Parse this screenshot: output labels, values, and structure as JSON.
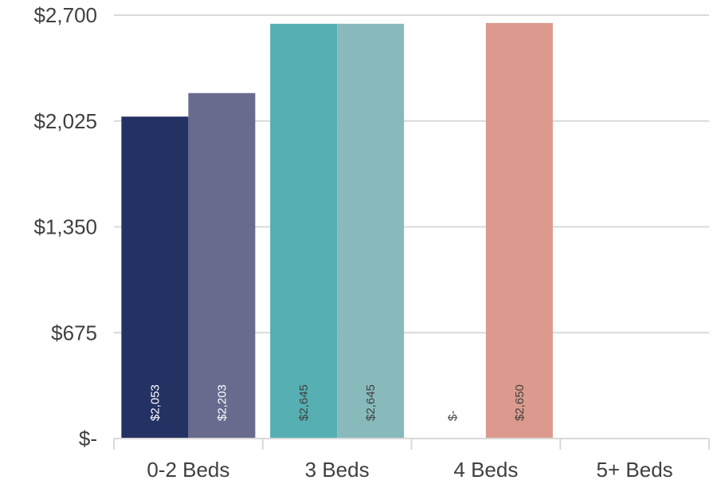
{
  "chart_data": {
    "type": "bar",
    "categories": [
      "0-2 Beds",
      "3 Beds",
      "4 Beds",
      "5+ Beds"
    ],
    "y_ticks": [
      "$-",
      "$675",
      "$1,350",
      "$2,025",
      "$2,700"
    ],
    "ylim": [
      0,
      2700
    ],
    "grid": true,
    "legend": "none",
    "series": [
      {
        "color": "#243163",
        "values": [
          2053,
          2645,
          0,
          null
        ],
        "labels": [
          "$2,053",
          "$2,645",
          "$-",
          ""
        ]
      },
      {
        "color": "#686b8e",
        "values": [
          2203,
          2645,
          2650,
          null
        ],
        "labels": [
          "$2,203",
          "$2,645",
          "$2,650",
          ""
        ]
      }
    ],
    "category_colors": [
      [
        "#243163",
        "#686b8e"
      ],
      [
        "#56afb2",
        "#88babc"
      ],
      [
        "#ffffff",
        "#db9a8d"
      ],
      [
        "#ffffff",
        "#ffffff"
      ]
    ],
    "label_colors": [
      [
        "#ffffff",
        "#ffffff"
      ],
      [
        "#404040",
        "#404040"
      ],
      [
        "#404040",
        "#404040"
      ],
      [
        "#404040",
        "#404040"
      ]
    ]
  }
}
